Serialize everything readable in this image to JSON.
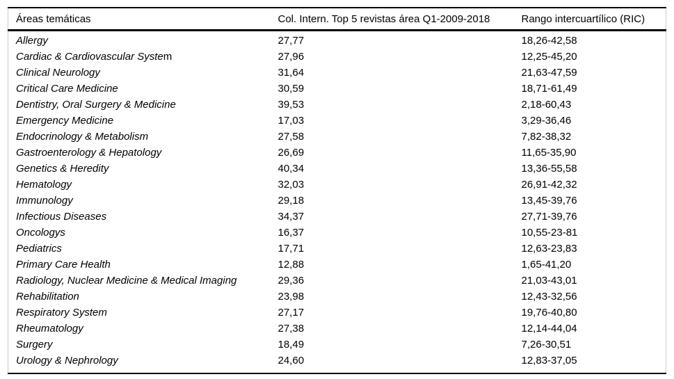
{
  "colors": {
    "background": "#ffffff",
    "text": "#000000",
    "rule_heavy": "#000000",
    "rule_side": "#cccccc"
  },
  "table": {
    "headers": [
      "Áreas temáticas",
      "Col. Intern. Top 5 revistas área Q1-2009-2018",
      "Rango intercuartílico (RIC)"
    ],
    "rows": [
      {
        "area": "Allergy",
        "area_suffix": "",
        "value": "27,77",
        "ric": "18,26-42,58"
      },
      {
        "area": "Cardiac & Cardiovascular Syste",
        "area_suffix": "m",
        "value": "27,96",
        "ric": "12,25-45,20"
      },
      {
        "area": "Clinical Neurology",
        "area_suffix": "",
        "value": "31,64",
        "ric": "21,63-47,59"
      },
      {
        "area": "Critical Care Medicine",
        "area_suffix": "",
        "value": "30,59",
        "ric": "18,71-61,49"
      },
      {
        "area": "Dentistry, Oral Surgery & Medicine",
        "area_suffix": "",
        "value": "39,53",
        "ric": "2,18-60,43"
      },
      {
        "area": "Emergency Medicine",
        "area_suffix": "",
        "value": "17,03",
        "ric": "3,29-36,46"
      },
      {
        "area": "Endocrinology & Metabolism",
        "area_suffix": "",
        "value": "27,58",
        "ric": "7,82-38,32"
      },
      {
        "area": "Gastroenterology & Hepatology",
        "area_suffix": "",
        "value": "26,69",
        "ric": "11,65-35,90"
      },
      {
        "area": "Genetics & Heredity",
        "area_suffix": "",
        "value": "40,34",
        "ric": "13,36-55,58"
      },
      {
        "area": "Hematology",
        "area_suffix": "",
        "value": "32,03",
        "ric": "26,91-42,32"
      },
      {
        "area": "Immunology",
        "area_suffix": "",
        "value": "29,18",
        "ric": "13,45-39,76"
      },
      {
        "area": "Infectious Diseases",
        "area_suffix": "",
        "value": "34,37",
        "ric": "27,71-39,76"
      },
      {
        "area": "Oncologys",
        "area_suffix": "",
        "value": "16,37",
        "ric": "10,55-23-81"
      },
      {
        "area": "Pediatrics",
        "area_suffix": "",
        "value": "17,71",
        "ric": "12,63-23,83"
      },
      {
        "area": "Primary Care Health",
        "area_suffix": "",
        "value": "12,88",
        "ric": "1,65-41,20"
      },
      {
        "area": "Radiology, Nuclear Medicine & Medical Imaging",
        "area_suffix": "",
        "value": "29,36",
        "ric": "21,03-43,01"
      },
      {
        "area": "Rehabilitation",
        "area_suffix": "",
        "value": "23,98",
        "ric": "12,43-32,56"
      },
      {
        "area": "Respiratory System",
        "area_suffix": "",
        "value": "27,17",
        "ric": "19,76-40,80"
      },
      {
        "area": "Rheumatology",
        "area_suffix": "",
        "value": "27,38",
        "ric": "12,14-44,04"
      },
      {
        "area": "Surgery",
        "area_suffix": "",
        "value": "18,49",
        "ric": "7,26-30,51"
      },
      {
        "area": "Urology & Nephrology",
        "area_suffix": "",
        "value": "24,60",
        "ric": "12,83-37,05"
      }
    ]
  }
}
